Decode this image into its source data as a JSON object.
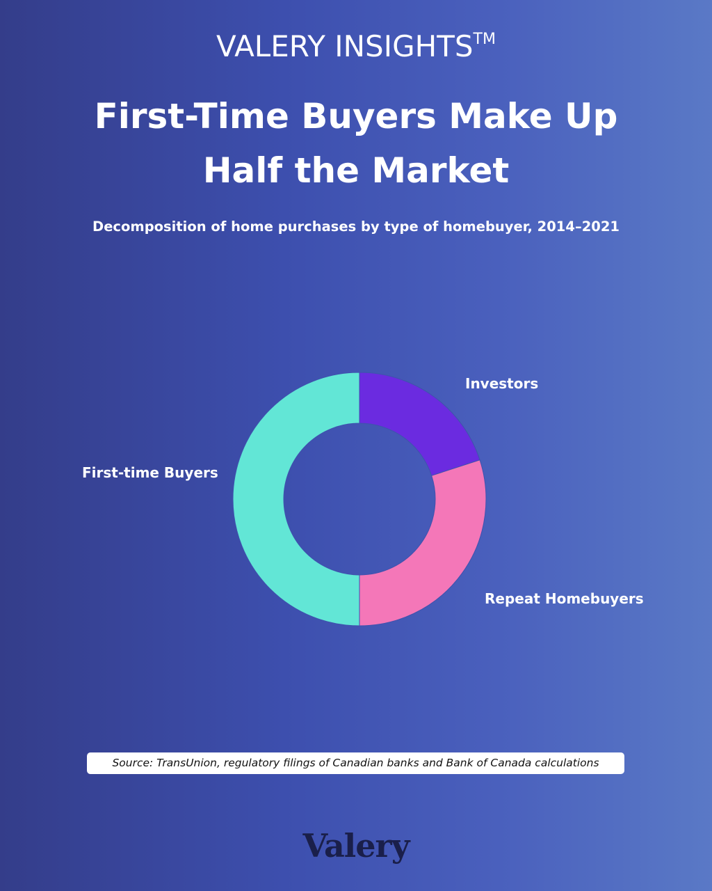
{
  "brand": {
    "name": "VALERY INSIGHTS",
    "tm": "TM"
  },
  "header": {
    "title_line1": "First-Time Buyers Make Up",
    "title_line2": "Half the Market",
    "subtitle": "Decomposition of home purchases by type of homebuyer, 2014–2021"
  },
  "chart_data": {
    "type": "pie",
    "donut": true,
    "slices": [
      {
        "label": "Investors",
        "value": 20,
        "color": "#6b2be0"
      },
      {
        "label": "Repeat Homebuyers",
        "value": 30,
        "color": "#f477b8"
      },
      {
        "label": "First-time Buyers",
        "value": 50,
        "color": "#62e6d6"
      }
    ],
    "start_angle": "top, clockwise"
  },
  "footer": {
    "source": "Source: TransUnion, regulatory filings of Canadian banks and Bank of Canada calculations",
    "logo_text": "Valery"
  }
}
